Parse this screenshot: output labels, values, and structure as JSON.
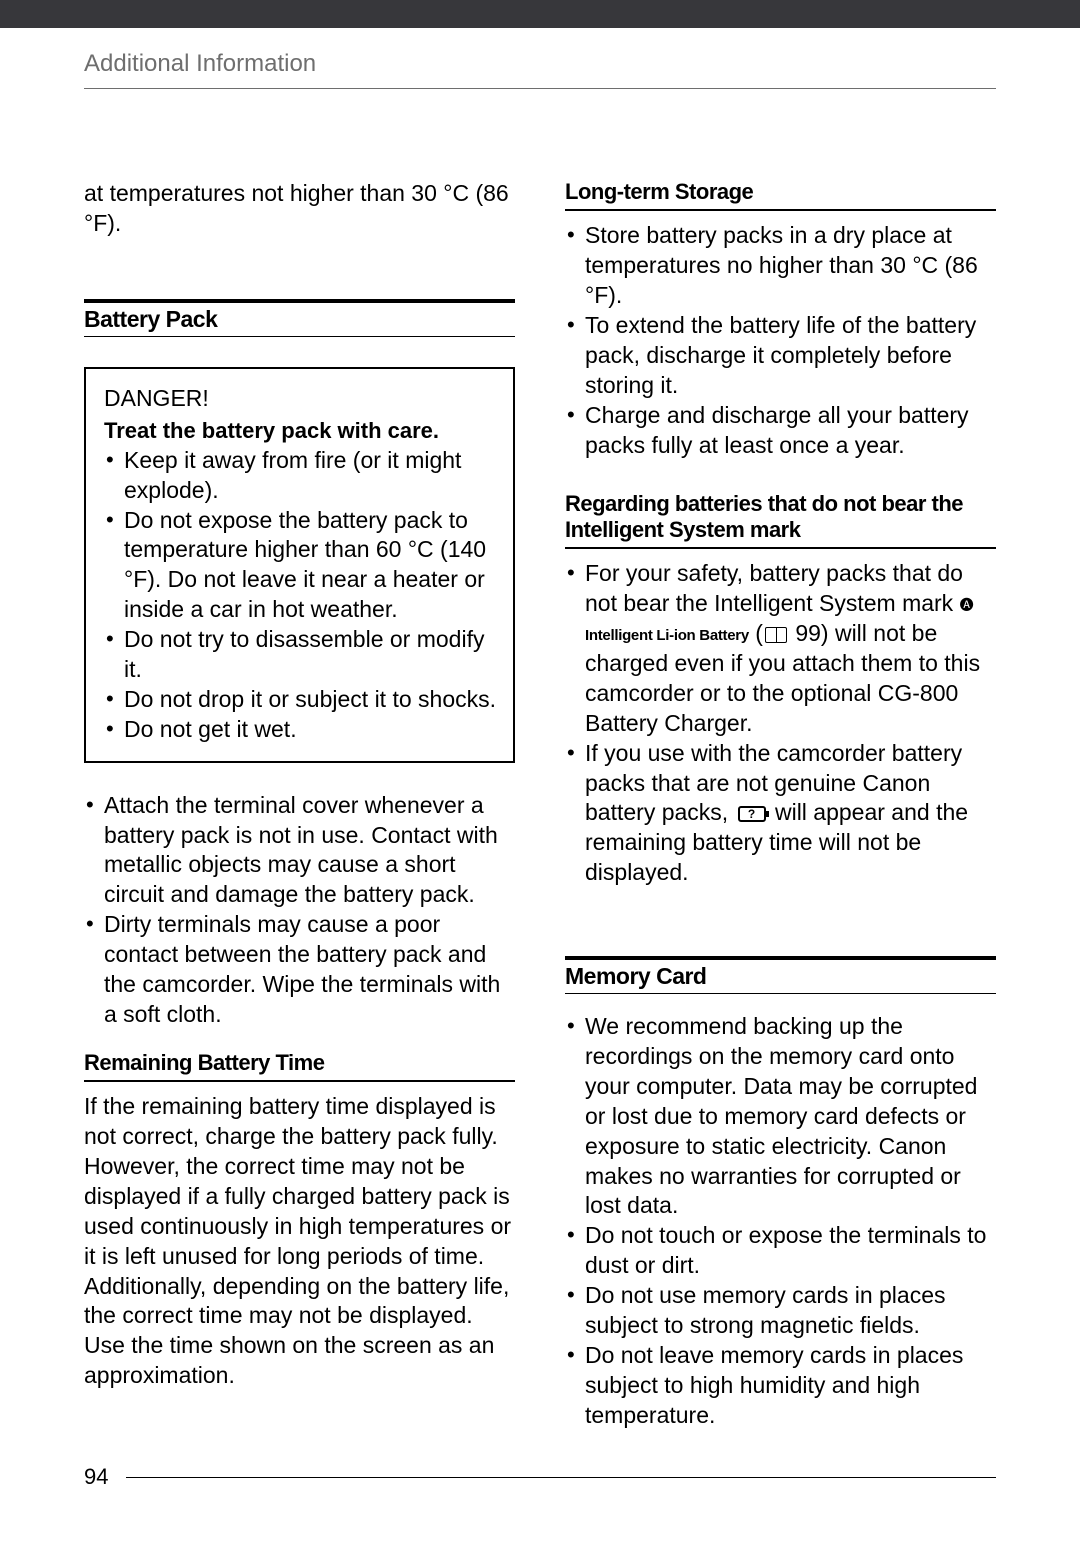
{
  "header": {
    "title": "Additional Information"
  },
  "leftCol": {
    "introText": "at temperatures not higher than 30 °C (86 °F).",
    "batteryPack": {
      "heading": "Battery Pack",
      "danger": {
        "title": "DANGER!",
        "subtitle": "Treat the battery pack with care.",
        "items": [
          "Keep it away from fire (or it might explode).",
          "Do not expose the battery pack to temperature higher than 60 °C (140 °F). Do not leave it near a heater or inside a car in hot weather.",
          "Do not try to disassemble or modify it.",
          "Do not drop it or subject it to shocks.",
          "Do not get it wet."
        ]
      },
      "afterItems": [
        "Attach the terminal cover whenever a battery pack is not in use. Contact with metallic objects may cause a short circuit and damage the battery pack.",
        "Dirty terminals may cause a poor contact between the battery pack and the camcorder. Wipe the terminals with a soft cloth."
      ]
    },
    "remainingBattery": {
      "heading": "Remaining Battery Time",
      "text": "If the remaining battery time displayed is not correct, charge the battery pack fully. However, the correct time may not be displayed if a fully charged battery pack is used continuously in high temperatures or it is left unused for long periods of time. Additionally, depending on the battery life, the correct time may not be displayed. Use the time shown on the screen as an approximation."
    }
  },
  "rightCol": {
    "longTerm": {
      "heading": "Long-term Storage",
      "items": [
        "Store battery packs in a dry place at temperatures no higher than 30 °C (86 °F).",
        "To extend the battery life of the battery pack, discharge it completely before storing it.",
        "Charge and discharge all your battery packs fully at least once a year."
      ]
    },
    "regarding": {
      "heading": "Regarding batteries that do not bear the Intelligent System mark",
      "item1_pre": "For your safety, battery packs that do not bear the Intelligent System mark ",
      "item1_mark": "Intelligent Li-ion Battery",
      "item1_ref": " 99) will not be charged even if you attach them to this camcorder or to the optional CG-800 Battery Charger.",
      "item2_pre": "If you use with the camcorder battery packs that are not genuine Canon battery packs, ",
      "item2_post": " will appear and the remaining battery time will not be displayed."
    },
    "memoryCard": {
      "heading": "Memory Card",
      "items": [
        "We recommend backing up the recordings on the memory card onto your computer. Data may be corrupted or lost due to memory card defects or exposure to static electricity. Canon makes no warranties for corrupted or lost data.",
        "Do not touch or expose the terminals to dust or dirt.",
        "Do not use memory cards in places subject to strong magnetic fields.",
        "Do not leave memory cards in places subject to high humidity and high temperature."
      ]
    }
  },
  "pageNumber": "94"
}
